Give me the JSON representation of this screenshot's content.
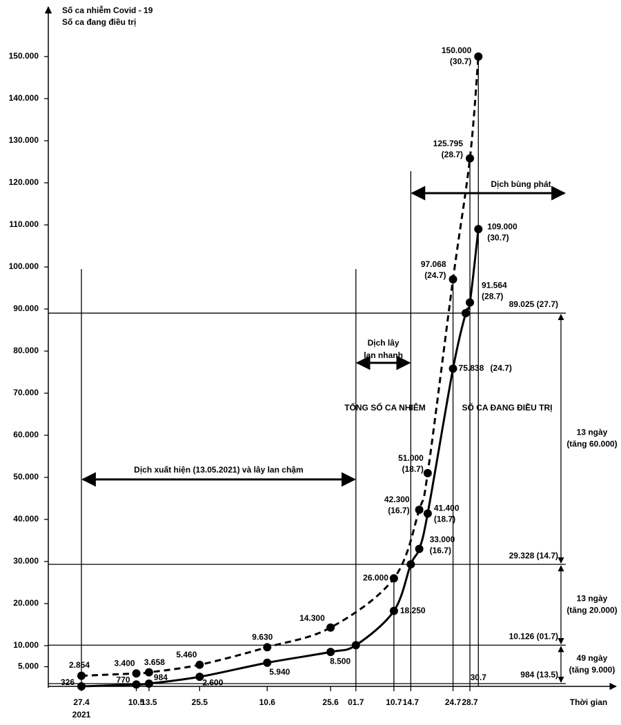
{
  "chart_data": {
    "type": "line",
    "y_title": [
      "Số ca nhiễm Covid - 19",
      "Số ca đang điều trị"
    ],
    "x_title": "Thời gian",
    "year": "2021",
    "xticks": [
      "27.4",
      "10.5",
      "13.5",
      "25.5",
      "10.6",
      "25.6",
      "01.7",
      "10.7",
      "14.7",
      "24.7",
      "28.7"
    ],
    "x_note": "30.7",
    "ylim": [
      0,
      160000
    ],
    "yticks": [
      {
        "value": 5000,
        "label": "5.000"
      },
      {
        "value": 10000,
        "label": "10.000"
      },
      {
        "value": 20000,
        "label": "20.000"
      },
      {
        "value": 30000,
        "label": "30.000"
      },
      {
        "value": 40000,
        "label": "40.000"
      },
      {
        "value": 50000,
        "label": "50.000"
      },
      {
        "value": 60000,
        "label": "60.000"
      },
      {
        "value": 70000,
        "label": "70.000"
      },
      {
        "value": 80000,
        "label": "80.000"
      },
      {
        "value": 90000,
        "label": "90.000"
      },
      {
        "value": 100000,
        "label": "100.000"
      },
      {
        "value": 110000,
        "label": "110.000"
      },
      {
        "value": 120000,
        "label": "120.000"
      },
      {
        "value": 130000,
        "label": "130.000"
      },
      {
        "value": 140000,
        "label": "140.000"
      },
      {
        "value": 150000,
        "label": "150.000"
      }
    ],
    "series": [
      {
        "name": "TỔNG SỐ CA NHIỄM",
        "color": "#000000",
        "dashed": true,
        "x": [
          "27.4",
          "10.5",
          "13.5",
          "25.5",
          "10.6",
          "25.6",
          "10.7",
          "16.7",
          "18.7",
          "24.7",
          "28.7",
          "30.7"
        ],
        "values": [
          2854,
          3400,
          3658,
          5460,
          9630,
          14300,
          26000,
          42300,
          51000,
          97068,
          125795,
          150000
        ],
        "value_labels": [
          "2.854",
          "3.400",
          "3.658",
          "5.460",
          "9.630",
          "14.300",
          "26.000",
          "42.300",
          "51.000",
          "97.068",
          "125.795",
          "150.000"
        ],
        "label_dates": [
          null,
          null,
          null,
          null,
          null,
          null,
          null,
          "(16.7)",
          "(18.7)",
          "(24.7)",
          "(28.7)",
          "(30.7)"
        ]
      },
      {
        "name": "SỐ CA ĐANG ĐIỀU TRỊ",
        "color": "#000000",
        "dashed": false,
        "x": [
          "27.4",
          "10.5",
          "13.5",
          "25.5",
          "10.6",
          "25.6",
          "01.7",
          "10.7",
          "14.7",
          "16.7",
          "18.7",
          "24.7",
          "27.7",
          "28.7",
          "30.7"
        ],
        "values": [
          326,
          770,
          984,
          2600,
          5940,
          8500,
          10126,
          18250,
          29328,
          33000,
          41400,
          75838,
          89025,
          91564,
          109000
        ],
        "value_labels": [
          "326",
          "770",
          "984",
          "2.600",
          "5.940",
          "8.500",
          null,
          "18.250",
          null,
          "33.000",
          "41.400",
          "75.838",
          null,
          "91.564",
          "109.000"
        ],
        "label_dates": [
          null,
          null,
          null,
          null,
          null,
          null,
          null,
          null,
          null,
          "(16.7)",
          "(18.7)",
          "(24.7)",
          null,
          "(28.7)",
          "(30.7)"
        ]
      }
    ],
    "reference_lines": [
      {
        "value": 89025,
        "label": "89.025 (27.7)"
      },
      {
        "value": 29328,
        "label": "29.328 (14.7)"
      },
      {
        "value": 10126,
        "label": "10.126 (01.7)"
      },
      {
        "value": 984,
        "label": "984 (13.5)"
      }
    ],
    "intervals": [
      [
        "13 ngày",
        "(tăng 60.000)"
      ],
      [
        "13 ngày",
        "(tăng 20.000)"
      ],
      [
        "49 ngày",
        "(tăng 9.000)"
      ]
    ],
    "phases": [
      [
        "Dịch xuất hiện (13.05.2021) và lây lan chậm"
      ],
      [
        "Dịch lây",
        "lan nhanh"
      ],
      [
        "Dịch bùng phát"
      ]
    ]
  }
}
